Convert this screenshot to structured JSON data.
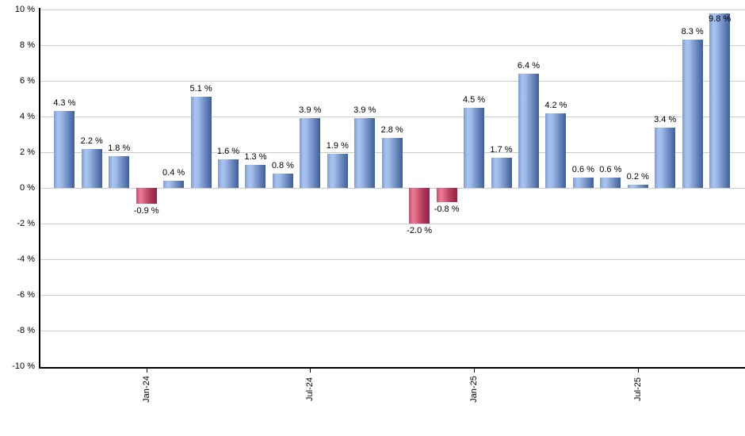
{
  "chart_data": {
    "type": "bar",
    "title": "",
    "xlabel": "",
    "ylabel": "",
    "unit": "%",
    "ylim": [
      -10,
      10
    ],
    "grid": true,
    "legend_position": "none",
    "values": [
      4.3,
      2.2,
      1.8,
      -0.9,
      0.4,
      5.1,
      1.6,
      1.3,
      0.8,
      3.9,
      1.9,
      3.9,
      2.8,
      -2.0,
      -0.8,
      4.5,
      1.7,
      6.4,
      4.2,
      0.6,
      0.6,
      0.2,
      3.4,
      8.3,
      9.8
    ],
    "bar_value_labels": [
      "4.3 %",
      "2.2 %",
      "1.8 %",
      "-0.9 %",
      "0.4 %",
      "5.1 %",
      "1.6 %",
      "1.3 %",
      "0.8 %",
      "3.9 %",
      "1.9 %",
      "3.9 %",
      "2.8 %",
      "-2.0 %",
      "-0.8 %",
      "4.5 %",
      "1.7 %",
      "6.4 %",
      "4.2 %",
      "0.6 %",
      "0.6 %",
      "0.2 %",
      "3.4 %",
      "8.3 %",
      "9.8 %"
    ],
    "y_tick_labels": [
      "10 %",
      "8 %",
      "6 %",
      "4 %",
      "2 %",
      "0 %",
      "-2 %",
      "-4 %",
      "-6 %",
      "-8 %",
      "-10 %"
    ],
    "y_tick_values": [
      10,
      8,
      6,
      4,
      2,
      0,
      -2,
      -4,
      -6,
      -8,
      -10
    ],
    "x_tick_labels": [
      "Jan-24",
      "Jul-24",
      "Jan-25",
      "Jul-25"
    ],
    "x_tick_bar_indices": [
      3,
      9,
      15,
      21
    ],
    "colors": {
      "bar_positive_edge": "#7d9cd6",
      "bar_positive_highlight": "#aac4ef",
      "bar_positive_dark": "#3f5e99",
      "bar_negative_edge": "#c84e6c",
      "bar_negative_highlight": "#ea7e96",
      "bar_negative_dark": "#972343",
      "gridline": "#cccccc",
      "axis": "#000000",
      "label_text": "#000000",
      "background": "#ffffff"
    }
  }
}
